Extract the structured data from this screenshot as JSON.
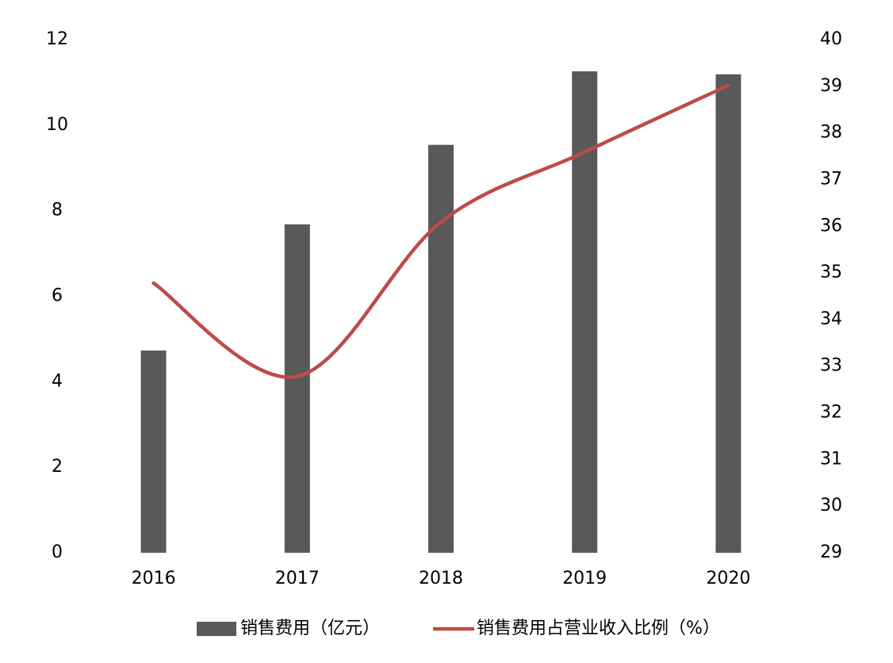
{
  "chart_data": {
    "type": "bar",
    "categories": [
      "2016",
      "2017",
      "2018",
      "2019",
      "2020"
    ],
    "series": [
      {
        "name": "销售费用（亿元）",
        "color": "#595959",
        "type": "bar",
        "values": [
          4.73,
          7.68,
          9.54,
          11.26,
          11.19
        ]
      },
      {
        "name": "销售费用占营业收入比例（%）",
        "color": "#be4b48",
        "type": "line",
        "axis": "y2",
        "values": [
          34.78,
          32.78,
          36.09,
          37.59,
          39.02
        ]
      }
    ],
    "ylim": [
      0,
      12
    ],
    "yticks": [
      0,
      2,
      4,
      6,
      8,
      10,
      12
    ],
    "y2lim": [
      29,
      40
    ],
    "y2ticks": [
      29,
      30,
      31,
      32,
      33,
      34,
      35,
      36,
      37,
      38,
      39,
      40
    ],
    "grid": false
  }
}
